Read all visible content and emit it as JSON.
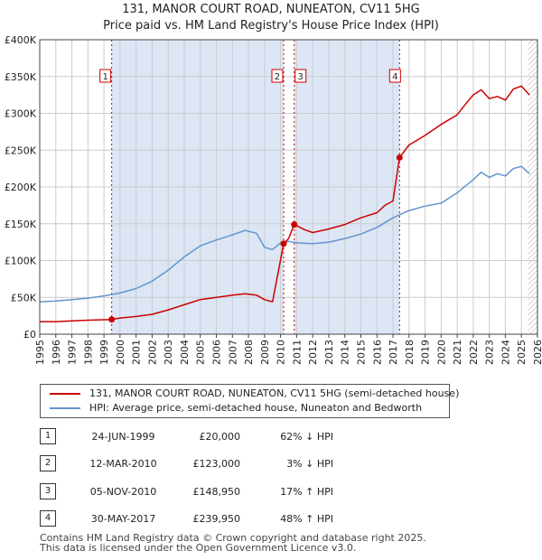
{
  "chart_data": {
    "type": "line",
    "title": "131, MANOR COURT ROAD, NUNEATON, CV11 5HG",
    "subtitle": "Price paid vs. HM Land Registry's House Price Index (HPI)",
    "xlim": [
      1995,
      2026
    ],
    "ylim": [
      0,
      400000
    ],
    "x_ticks": [
      "1995",
      "1996",
      "1997",
      "1998",
      "1999",
      "2000",
      "2001",
      "2002",
      "2003",
      "2004",
      "2005",
      "2006",
      "2007",
      "2008",
      "2009",
      "2010",
      "2011",
      "2012",
      "2013",
      "2014",
      "2015",
      "2016",
      "2017",
      "2018",
      "2019",
      "2020",
      "2021",
      "2022",
      "2023",
      "2024",
      "2025",
      "2026"
    ],
    "y_ticks": [
      {
        "value": 0,
        "label": "£0"
      },
      {
        "value": 50000,
        "label": "£50K"
      },
      {
        "value": 100000,
        "label": "£100K"
      },
      {
        "value": 150000,
        "label": "£150K"
      },
      {
        "value": 200000,
        "label": "£200K"
      },
      {
        "value": 250000,
        "label": "£250K"
      },
      {
        "value": 300000,
        "label": "£300K"
      },
      {
        "value": 350000,
        "label": "£350K"
      },
      {
        "value": 400000,
        "label": "£400K"
      }
    ],
    "grid": true,
    "series": [
      {
        "name": "131, MANOR COURT ROAD, NUNEATON, CV11 5HG (semi-detached house)",
        "color": "#cc0000",
        "x": [
          1995,
          1996,
          1997,
          1998,
          1999.48,
          2000,
          2001,
          2002,
          2003,
          2004,
          2005,
          2006,
          2007,
          2007.8,
          2008.5,
          2009,
          2009.5,
          2010.19,
          2010.5,
          2010.85,
          2011.5,
          2012,
          2013,
          2014,
          2015,
          2016,
          2016.5,
          2017.0,
          2017.41,
          2018,
          2019,
          2020,
          2021,
          2021.5,
          2022,
          2022.5,
          2023,
          2023.5,
          2024,
          2024.5,
          2025,
          2025.5
        ],
        "y": [
          17000,
          17000,
          18000,
          19000,
          20000,
          22000,
          24000,
          27000,
          33000,
          40000,
          47000,
          50000,
          53000,
          55000,
          53000,
          47000,
          44000,
          123000,
          130000,
          148950,
          142000,
          138000,
          143000,
          149000,
          158000,
          165000,
          175000,
          181000,
          239950,
          257000,
          270000,
          285000,
          298000,
          312000,
          325000,
          332000,
          320000,
          323000,
          318000,
          333000,
          337000,
          325000
        ]
      },
      {
        "name": "HPI: Average price, semi-detached house, Nuneaton and Bedworth",
        "color": "#6495cd",
        "x": [
          1995,
          1996,
          1997,
          1998,
          1999,
          2000,
          2001,
          2002,
          2003,
          2004,
          2005,
          2006,
          2007,
          2007.8,
          2008.5,
          2009,
          2009.5,
          2010,
          2010.5,
          2011,
          2012,
          2013,
          2014,
          2015,
          2016,
          2017,
          2018,
          2019,
          2020,
          2021,
          2022,
          2022.5,
          2023,
          2023.5,
          2024,
          2024.5,
          2025,
          2025.5
        ],
        "y": [
          44000,
          45000,
          47000,
          49000,
          52000,
          56000,
          62000,
          72000,
          87000,
          105000,
          120000,
          128000,
          135000,
          141000,
          137000,
          118000,
          115000,
          124000,
          126000,
          124000,
          123000,
          125000,
          130000,
          136000,
          145000,
          158000,
          168000,
          174000,
          178000,
          192000,
          210000,
          220000,
          213000,
          218000,
          215000,
          225000,
          228000,
          218000
        ]
      }
    ],
    "events": [
      {
        "label": "1",
        "x": 1999.48,
        "price": 20000
      },
      {
        "label": "2",
        "x": 2010.19,
        "price": 123000
      },
      {
        "label": "3",
        "x": 2010.85,
        "price": 148950
      },
      {
        "label": "4",
        "x": 2017.41,
        "price": 239950
      }
    ],
    "hatch_after": 2025.4
  },
  "legend": {
    "property": "131, MANOR COURT ROAD, NUNEATON, CV11 5HG (semi-detached house)",
    "hpi": "HPI: Average price, semi-detached house, Nuneaton and Bedworth"
  },
  "transactions": [
    {
      "num": "1",
      "date": "24-JUN-1999",
      "price": "£20,000",
      "hpi": "62% ↓ HPI"
    },
    {
      "num": "2",
      "date": "12-MAR-2010",
      "price": "£123,000",
      "hpi": "3% ↓ HPI"
    },
    {
      "num": "3",
      "date": "05-NOV-2010",
      "price": "£148,950",
      "hpi": "17% ↑ HPI"
    },
    {
      "num": "4",
      "date": "30-MAY-2017",
      "price": "£239,950",
      "hpi": "48% ↑ HPI"
    }
  ],
  "footer": {
    "line1": "Contains HM Land Registry data © Crown copyright and database right 2025.",
    "line2": "This data is licensed under the Open Government Licence v3.0."
  }
}
